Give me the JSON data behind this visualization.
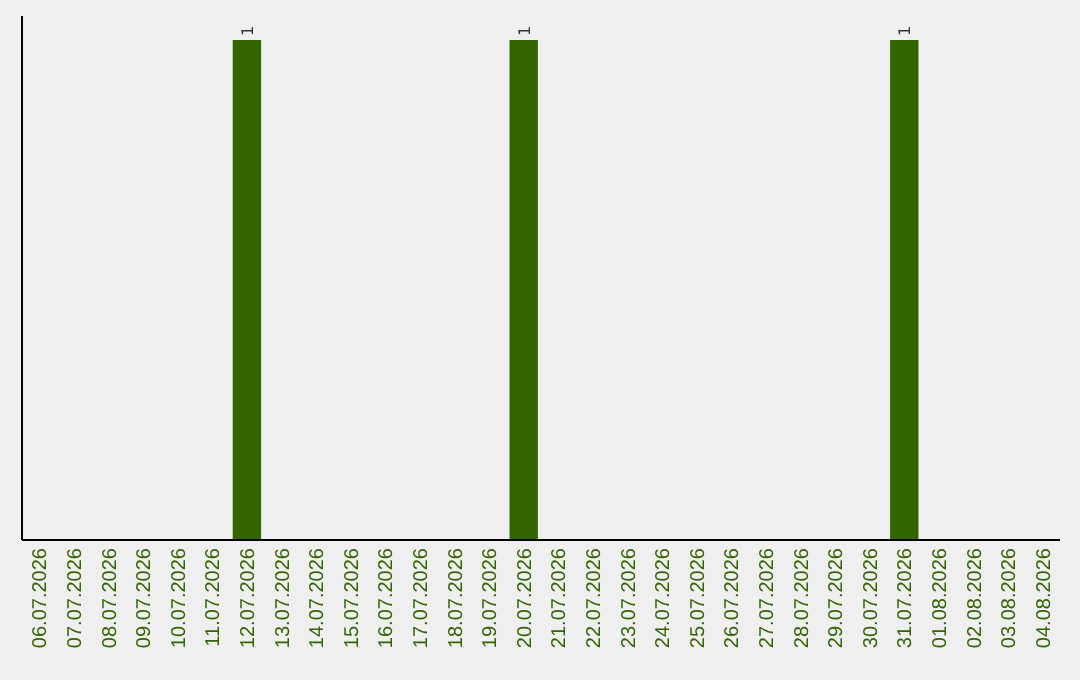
{
  "chart_data": {
    "type": "bar",
    "categories": [
      "06.07.2026",
      "07.07.2026",
      "08.07.2026",
      "09.07.2026",
      "10.07.2026",
      "11.07.2026",
      "12.07.2026",
      "13.07.2026",
      "14.07.2026",
      "15.07.2026",
      "16.07.2026",
      "17.07.2026",
      "18.07.2026",
      "19.07.2026",
      "20.07.2026",
      "21.07.2026",
      "22.07.2026",
      "23.07.2026",
      "24.07.2026",
      "25.07.2026",
      "26.07.2026",
      "27.07.2026",
      "28.07.2026",
      "29.07.2026",
      "30.07.2026",
      "31.07.2026",
      "01.08.2026",
      "02.08.2026",
      "03.08.2026",
      "04.08.2026"
    ],
    "values": [
      0,
      0,
      0,
      0,
      0,
      0,
      1,
      0,
      0,
      0,
      0,
      0,
      0,
      0,
      1,
      0,
      0,
      0,
      0,
      0,
      0,
      0,
      0,
      0,
      0,
      1,
      0,
      0,
      0,
      0
    ],
    "value_labels": [
      null,
      null,
      null,
      null,
      null,
      null,
      "1",
      null,
      null,
      null,
      null,
      null,
      null,
      null,
      "1",
      null,
      null,
      null,
      null,
      null,
      null,
      null,
      null,
      null,
      null,
      "1",
      null,
      null,
      null,
      null
    ],
    "color": "#336600"
  }
}
